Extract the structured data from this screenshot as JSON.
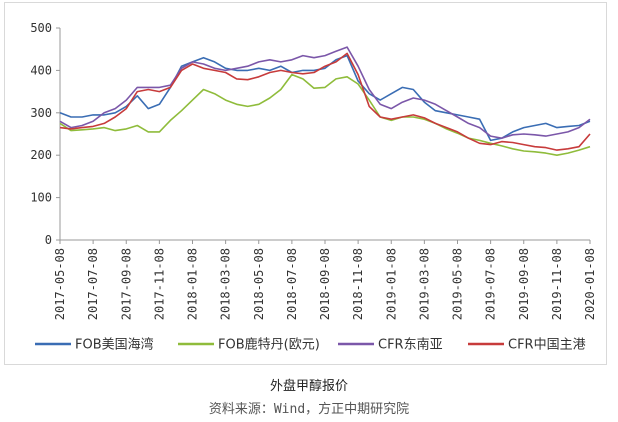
{
  "chart_data": {
    "type": "line",
    "title": "",
    "xlabel": "",
    "ylabel": "",
    "ylim": [
      0,
      500
    ],
    "yticks": [
      0,
      100,
      200,
      300,
      400,
      500
    ],
    "x_tick_labels": [
      "2017-05-08",
      "2017-07-08",
      "2017-09-08",
      "2017-11-08",
      "2018-01-08",
      "2018-03-08",
      "2018-05-08",
      "2018-07-08",
      "2018-09-08",
      "2018-11-08",
      "2019-01-08",
      "2019-03-08",
      "2019-05-08",
      "2019-07-08",
      "2019-09-08",
      "2019-11-08",
      "2020-01-08"
    ],
    "grid": false,
    "legend_position": "bottom",
    "series": [
      {
        "name": "FOB美国海湾",
        "color": "#3a6db4",
        "values": [
          300,
          290,
          290,
          295,
          295,
          300,
          315,
          340,
          310,
          320,
          360,
          410,
          420,
          430,
          420,
          405,
          400,
          400,
          405,
          400,
          410,
          395,
          400,
          400,
          405,
          425,
          435,
          375,
          345,
          330,
          345,
          360,
          355,
          325,
          305,
          300,
          295,
          290,
          285,
          235,
          240,
          255,
          265,
          270,
          275,
          265,
          268,
          270,
          280
        ]
      },
      {
        "name": "FOB鹿特丹(欧元)",
        "color": "#8fbc3b",
        "values": [
          275,
          258,
          260,
          262,
          265,
          258,
          262,
          270,
          255,
          255,
          282,
          305,
          330,
          355,
          345,
          330,
          320,
          315,
          320,
          335,
          355,
          390,
          380,
          358,
          360,
          380,
          385,
          368,
          330,
          290,
          282,
          290,
          290,
          285,
          275,
          262,
          252,
          240,
          235,
          228,
          222,
          215,
          210,
          208,
          205,
          200,
          205,
          212,
          220
        ]
      },
      {
        "name": "CFR东南亚",
        "color": "#7b57a9",
        "values": [
          280,
          265,
          270,
          280,
          300,
          310,
          330,
          360,
          360,
          360,
          365,
          405,
          420,
          415,
          405,
          400,
          405,
          410,
          420,
          425,
          420,
          425,
          435,
          430,
          435,
          445,
          455,
          410,
          355,
          320,
          310,
          325,
          335,
          330,
          320,
          305,
          290,
          275,
          265,
          245,
          240,
          248,
          250,
          248,
          245,
          250,
          255,
          265,
          285
        ]
      },
      {
        "name": "CFR中国主港",
        "color": "#c73b3b",
        "values": [
          265,
          262,
          265,
          268,
          275,
          290,
          310,
          350,
          355,
          350,
          360,
          400,
          415,
          405,
          400,
          395,
          380,
          378,
          385,
          395,
          400,
          395,
          392,
          395,
          410,
          420,
          440,
          390,
          315,
          290,
          285,
          290,
          295,
          288,
          275,
          265,
          255,
          240,
          228,
          225,
          232,
          230,
          225,
          220,
          218,
          212,
          215,
          220,
          250
        ]
      }
    ]
  },
  "caption": {
    "title": "外盘甲醇报价",
    "source": "资料来源：Wind，方正中期研究院"
  }
}
